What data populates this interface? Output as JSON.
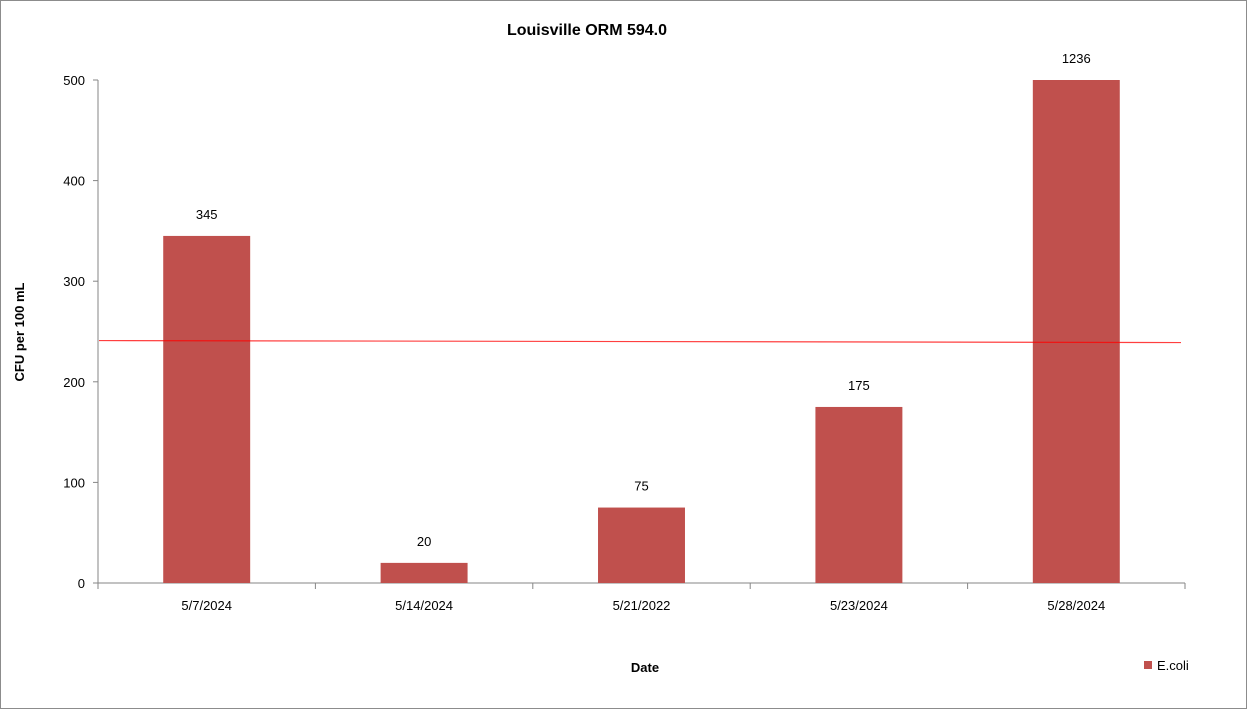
{
  "chart_data": {
    "type": "bar",
    "title": "Louisville ORM 594.0",
    "xlabel": "Date",
    "ylabel": "CFU per 100 mL",
    "categories": [
      "5/7/2024",
      "5/14/2024",
      "5/21/2022",
      "5/23/2024",
      "5/28/2024"
    ],
    "series": [
      {
        "name": "E.coli",
        "values": [
          345,
          20,
          75,
          175,
          1236
        ],
        "data_labels": [
          "345",
          "20",
          "75",
          "175",
          "1236"
        ],
        "color": "#c0504d"
      }
    ],
    "ylim": [
      0,
      500
    ],
    "yticks": [
      "0",
      "100",
      "200",
      "300",
      "400",
      "500"
    ],
    "reference_line": {
      "value": 240,
      "color": "#ff0000"
    },
    "grid": false,
    "legend_position": "bottom-right"
  }
}
